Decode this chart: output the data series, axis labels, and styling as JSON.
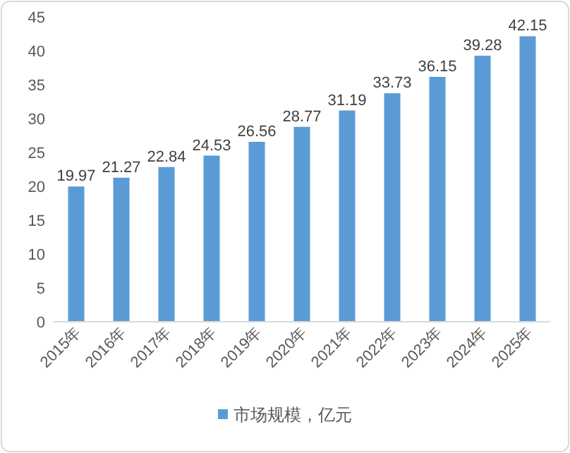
{
  "chart_data": {
    "type": "bar",
    "categories": [
      "2015年",
      "2016年",
      "2017年",
      "2018年",
      "2019年",
      "2020年",
      "2021年",
      "2022年",
      "2023年",
      "2024年",
      "2025年"
    ],
    "series": [
      {
        "name": "市场规模，亿元",
        "color": "#5b9bd5",
        "values": [
          19.97,
          21.27,
          22.84,
          24.53,
          26.56,
          28.77,
          31.19,
          33.73,
          36.15,
          39.28,
          42.15
        ]
      }
    ],
    "ylim": [
      0,
      45
    ],
    "yticks": [
      0,
      5,
      10,
      15,
      20,
      25,
      30,
      35,
      40,
      45
    ],
    "data_labels": true,
    "legend": "bottom"
  }
}
